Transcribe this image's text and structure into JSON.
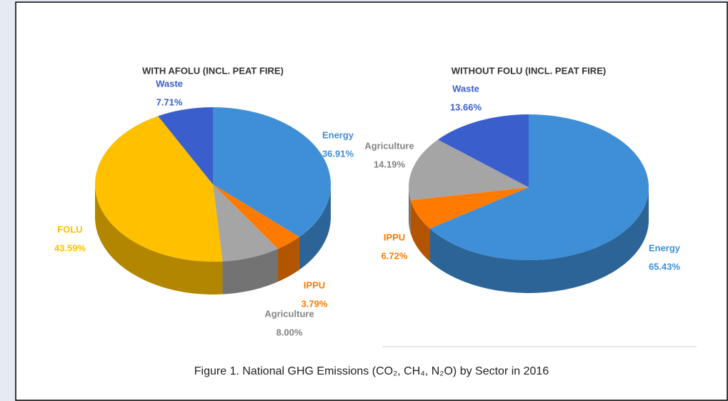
{
  "chart_data": [
    {
      "type": "pie",
      "title": "WITH AFOLU (INCL. PEAT FIRE)",
      "categories": [
        "Energy",
        "IPPU",
        "Agriculture",
        "FOLU",
        "Waste"
      ],
      "values": [
        36.91,
        3.79,
        8,
        43.59,
        7.71
      ],
      "value_labels": [
        "36.91%",
        "3.79%",
        "8.00%",
        "43.59%",
        "7.71%"
      ],
      "colors": [
        "#3f8fd8",
        "#ff7a00",
        "#a5a5a5",
        "#ffc000",
        "#3a5fcd"
      ]
    },
    {
      "type": "pie",
      "title": "WITHOUT FOLU (INCL. PEAT FIRE)",
      "categories": [
        "Energy",
        "IPPU",
        "Agriculture",
        "Waste"
      ],
      "values": [
        65.43,
        6.72,
        14.19,
        13.66
      ],
      "value_labels": [
        "65.43%",
        "6.72%",
        "14.19%",
        "13.66%"
      ],
      "colors": [
        "#3f8fd8",
        "#ff7a00",
        "#a5a5a5",
        "#3a5fcd"
      ]
    }
  ],
  "caption": "Figure 1. National GHG Emissions (CO₂, CH₄, N₂O) by Sector in 2016"
}
